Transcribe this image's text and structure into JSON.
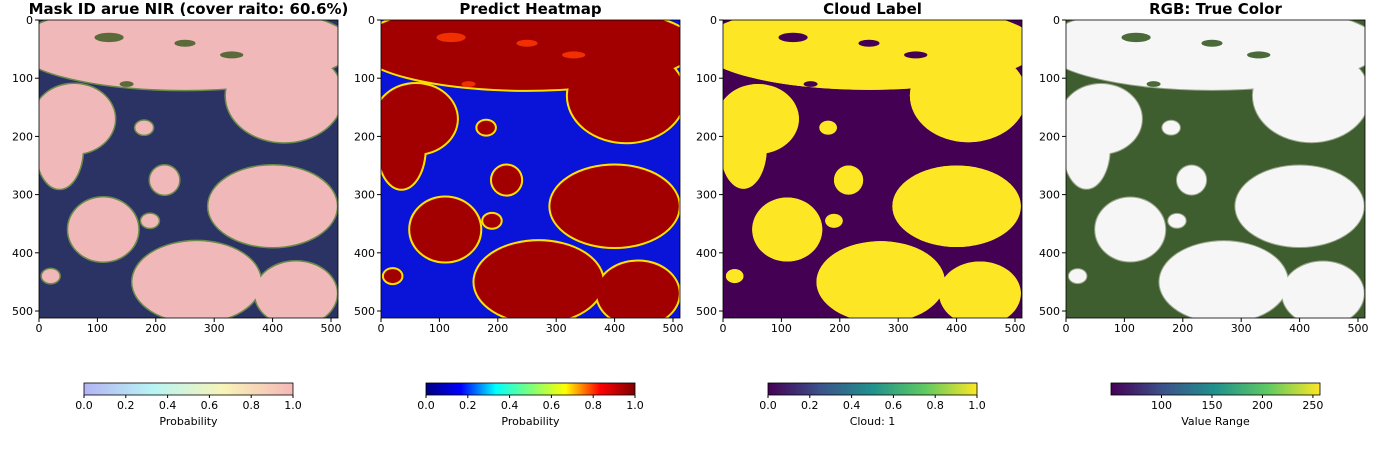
{
  "chart_data": [
    {
      "type": "image",
      "title": "Mask ID arue NIR (cover raito: 60.6%)",
      "xlim": [
        0,
        512
      ],
      "ylim": [
        512,
        0
      ],
      "xticks": [
        0,
        100,
        200,
        300,
        400,
        500
      ],
      "yticks": [
        0,
        100,
        200,
        300,
        400,
        500
      ],
      "colorbar": {
        "label": "Probability",
        "lim": [
          0,
          1
        ],
        "colors": [
          "#b4b4f4",
          "#b8f4f4",
          "#f8f4b8",
          "#f4b8b8"
        ],
        "ticks": [
          {
            "value": 0,
            "label": "0.0"
          },
          {
            "value": 0.2,
            "label": "0.2"
          },
          {
            "value": 0.4,
            "label": "0.4"
          },
          {
            "value": 0.6,
            "label": "0.6"
          },
          {
            "value": 0.8,
            "label": "0.8"
          },
          {
            "value": 1,
            "label": "1.0"
          }
        ]
      }
    },
    {
      "type": "image",
      "title": "Predict Heatmap",
      "xlim": [
        0,
        512
      ],
      "ylim": [
        512,
        0
      ],
      "xticks": [
        0,
        100,
        200,
        300,
        400,
        500
      ],
      "yticks": [
        0,
        100,
        200,
        300,
        400,
        500
      ],
      "colorbar": {
        "label": "Probability",
        "lim": [
          0,
          1
        ],
        "colors": [
          "#00007f",
          "#0000ff",
          "#00ffff",
          "#7dff7a",
          "#ffff00",
          "#ff0000",
          "#7f0000"
        ],
        "ticks": [
          {
            "value": 0,
            "label": "0.0"
          },
          {
            "value": 0.2,
            "label": "0.2"
          },
          {
            "value": 0.4,
            "label": "0.4"
          },
          {
            "value": 0.6,
            "label": "0.6"
          },
          {
            "value": 0.8,
            "label": "0.8"
          },
          {
            "value": 1,
            "label": "1.0"
          }
        ]
      }
    },
    {
      "type": "image",
      "title": "Cloud Label",
      "xlim": [
        0,
        512
      ],
      "ylim": [
        512,
        0
      ],
      "xticks": [
        0,
        100,
        200,
        300,
        400,
        500
      ],
      "yticks": [
        0,
        100,
        200,
        300,
        400,
        500
      ],
      "colorbar": {
        "label": "Cloud: 1",
        "lim": [
          0,
          1
        ],
        "colors": [
          "#440154",
          "#3b528b",
          "#21918c",
          "#5ec962",
          "#fde725"
        ],
        "ticks": [
          {
            "value": 0,
            "label": "0.0"
          },
          {
            "value": 0.2,
            "label": "0.2"
          },
          {
            "value": 0.4,
            "label": "0.4"
          },
          {
            "value": 0.6,
            "label": "0.6"
          },
          {
            "value": 0.8,
            "label": "0.8"
          },
          {
            "value": 1,
            "label": "1.0"
          }
        ]
      }
    },
    {
      "type": "image",
      "title": "RGB: True Color",
      "xlim": [
        0,
        512
      ],
      "ylim": [
        512,
        0
      ],
      "xticks": [
        0,
        100,
        200,
        300,
        400,
        500
      ],
      "yticks": [
        0,
        100,
        200,
        300,
        400,
        500
      ],
      "colorbar": {
        "label": "Value Range",
        "lim": [
          50,
          257
        ],
        "colors": [
          "#440154",
          "#3b528b",
          "#21918c",
          "#5ec962",
          "#fde725"
        ],
        "ticks": [
          100,
          150,
          200,
          250
        ]
      }
    }
  ]
}
